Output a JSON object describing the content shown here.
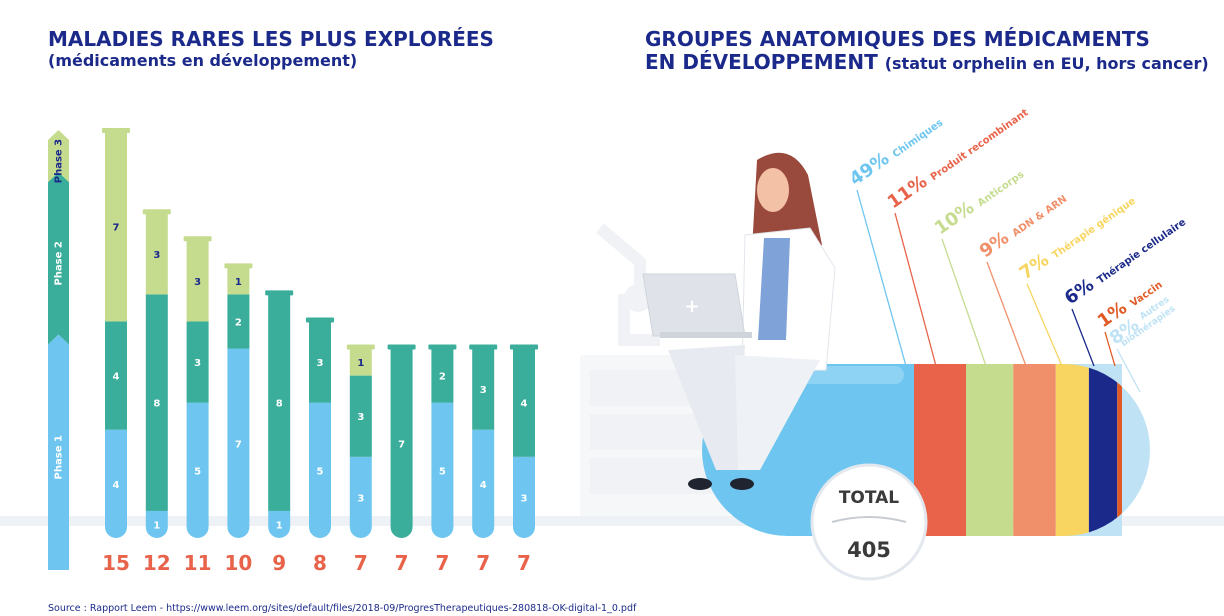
{
  "left": {
    "title": "MALADIES RARES LES PLUS EXPLORÉES",
    "subtitle": "(médicaments en développement)"
  },
  "right": {
    "title_line1": "GROUPES ANATOMIQUES DES MÉDICAMENTS",
    "title_line2": "EN DÉVELOPPEMENT",
    "subtitle": "(statut orphelin en EU, hors cancer)",
    "total_label": "TOTAL",
    "total_value": "405"
  },
  "source": "Source : Rapport Leem - https://www.leem.org/sites/default/files/2018-09/ProgresTherapeutiques-280818-OK-digital-1_0.pdf",
  "colors": {
    "phase1": "#6ec6f0",
    "phase2": "#3aae9a",
    "phase3": "#c5dc8f",
    "total": "#e8634a",
    "title": "#1b2a8a"
  },
  "chart_data": [
    {
      "type": "bar",
      "stacked": true,
      "title": "MALADIES RARES LES PLUS EXPLORÉES",
      "subtitle": "(médicaments en développement)",
      "phase_labels": [
        "Phase 3",
        "Phase 2",
        "Phase 1"
      ],
      "categories": [
        "",
        "",
        "",
        "",
        "",
        "",
        "",
        "",
        "",
        "",
        ""
      ],
      "series": [
        {
          "name": "Phase 1",
          "values": [
            4,
            1,
            5,
            7,
            1,
            5,
            3,
            0,
            5,
            4,
            3
          ]
        },
        {
          "name": "Phase 2",
          "values": [
            4,
            8,
            3,
            2,
            8,
            3,
            3,
            7,
            2,
            3,
            4
          ]
        },
        {
          "name": "Phase 3",
          "values": [
            7,
            3,
            3,
            1,
            0,
            0,
            1,
            0,
            0,
            0,
            0
          ]
        }
      ],
      "totals": [
        15,
        12,
        11,
        10,
        9,
        8,
        7,
        7,
        7,
        7,
        7
      ]
    },
    {
      "type": "bar",
      "stacked": true,
      "title": "GROUPES ANATOMIQUES DES MÉDICAMENTS EN DÉVELOPPEMENT",
      "subtitle": "(statut orphelin en EU, hors cancer)",
      "total": 405,
      "segments": [
        {
          "label": "Chimiques",
          "pct": 49,
          "pct_text": "49%",
          "color": "#6ec6f0"
        },
        {
          "label": "Produit recombinant",
          "pct": 11,
          "pct_text": "11%",
          "color": "#e8634a"
        },
        {
          "label": "Anticorps",
          "pct": 10,
          "pct_text": "10%",
          "color": "#c5dc8f"
        },
        {
          "label": "ADN & ARN",
          "pct": 9,
          "pct_text": "9%",
          "color": "#f0906a"
        },
        {
          "label": "Thérapie génique",
          "pct": 7,
          "pct_text": "7%",
          "color": "#f7d560"
        },
        {
          "label": "Thérapie cellulaire",
          "pct": 6,
          "pct_text": "6%",
          "color": "#1b2a8a"
        },
        {
          "label": "Vaccin",
          "pct": 1,
          "pct_text": "1%",
          "color": "#e05a26"
        },
        {
          "label": "Autres biothérapies",
          "pct": 8,
          "pct_text": "8%",
          "color": "#bfe3f5"
        }
      ]
    }
  ]
}
